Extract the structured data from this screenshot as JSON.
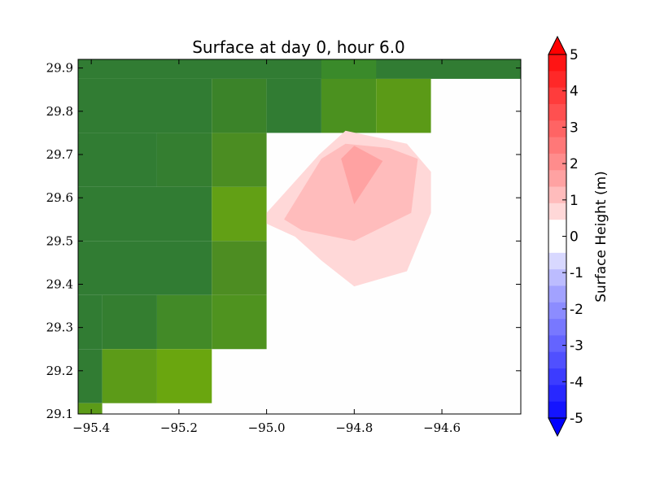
{
  "chart_data": {
    "type": "heatmap",
    "title": "Surface at day 0, hour 6.0",
    "xlabel": "",
    "ylabel": "",
    "xlim": [
      -95.43,
      -94.42
    ],
    "ylim": [
      29.1,
      29.92
    ],
    "xticks": [
      -95.4,
      -95.2,
      -95.0,
      -94.8,
      -94.6
    ],
    "xtick_labels": [
      "−95.4",
      "−95.2",
      "−95.0",
      "−94.8",
      "−94.6"
    ],
    "yticks": [
      29.1,
      29.2,
      29.3,
      29.4,
      29.5,
      29.6,
      29.7,
      29.8,
      29.9
    ],
    "ytick_labels": [
      "29.1",
      "29.2",
      "29.3",
      "29.4",
      "29.5",
      "29.6",
      "29.7",
      "29.8",
      "29.9"
    ],
    "land_cells": [
      {
        "x0": -95.43,
        "x1": -94.42,
        "y0": 29.875,
        "y1": 29.92,
        "color": "#317c33"
      },
      {
        "x0": -94.875,
        "x1": -94.75,
        "y0": 29.875,
        "y1": 29.92,
        "color": "#3a8a2a"
      },
      {
        "x0": -95.43,
        "x1": -95.125,
        "y0": 29.75,
        "y1": 29.875,
        "color": "#317c33"
      },
      {
        "x0": -95.125,
        "x1": -95.0,
        "y0": 29.75,
        "y1": 29.875,
        "color": "#3b8329"
      },
      {
        "x0": -95.0,
        "x1": -94.875,
        "y0": 29.75,
        "y1": 29.875,
        "color": "#317c33"
      },
      {
        "x0": -94.875,
        "x1": -94.75,
        "y0": 29.75,
        "y1": 29.875,
        "color": "#4b911f"
      },
      {
        "x0": -94.75,
        "x1": -94.625,
        "y0": 29.75,
        "y1": 29.875,
        "color": "#5b9a17"
      },
      {
        "x0": -95.43,
        "x1": -95.25,
        "y0": 29.625,
        "y1": 29.75,
        "color": "#317c33"
      },
      {
        "x0": -95.25,
        "x1": -95.125,
        "y0": 29.625,
        "y1": 29.75,
        "color": "#347e30"
      },
      {
        "x0": -95.125,
        "x1": -95.0,
        "y0": 29.625,
        "y1": 29.75,
        "color": "#4b8d22"
      },
      {
        "x0": -95.43,
        "x1": -95.125,
        "y0": 29.5,
        "y1": 29.625,
        "color": "#317c33"
      },
      {
        "x0": -95.125,
        "x1": -95.0,
        "y0": 29.5,
        "y1": 29.625,
        "color": "#62a015"
      },
      {
        "x0": -95.43,
        "x1": -95.125,
        "y0": 29.375,
        "y1": 29.5,
        "color": "#317c33"
      },
      {
        "x0": -95.125,
        "x1": -95.0,
        "y0": 29.375,
        "y1": 29.5,
        "color": "#4d8d22"
      },
      {
        "x0": -95.43,
        "x1": -95.375,
        "y0": 29.25,
        "y1": 29.375,
        "color": "#317c33"
      },
      {
        "x0": -95.375,
        "x1": -95.25,
        "y0": 29.25,
        "y1": 29.375,
        "color": "#347e30"
      },
      {
        "x0": -95.25,
        "x1": -95.125,
        "y0": 29.25,
        "y1": 29.375,
        "color": "#428a27"
      },
      {
        "x0": -95.125,
        "x1": -95.0,
        "y0": 29.25,
        "y1": 29.375,
        "color": "#4f931f"
      },
      {
        "x0": -95.43,
        "x1": -95.375,
        "y0": 29.125,
        "y1": 29.25,
        "color": "#317c33"
      },
      {
        "x0": -95.375,
        "x1": -95.25,
        "y0": 29.125,
        "y1": 29.25,
        "color": "#5c9b18"
      },
      {
        "x0": -95.25,
        "x1": -95.125,
        "y0": 29.125,
        "y1": 29.25,
        "color": "#6aa60f"
      },
      {
        "x0": -95.43,
        "x1": -95.375,
        "y0": 29.1,
        "y1": 29.125,
        "color": "#5c9b18"
      }
    ],
    "surface_contours": [
      {
        "level": "0-0.5",
        "color": "#ffd8d8",
        "points": [
          [
            -95.0,
            29.565
          ],
          [
            -94.88,
            29.7
          ],
          [
            -94.82,
            29.755
          ],
          [
            -94.68,
            29.725
          ],
          [
            -94.625,
            29.66
          ],
          [
            -94.625,
            29.565
          ],
          [
            -94.68,
            29.43
          ],
          [
            -94.8,
            29.395
          ],
          [
            -94.875,
            29.455
          ],
          [
            -94.935,
            29.51
          ],
          [
            -95.0,
            29.54
          ]
        ]
      },
      {
        "level": "0.5-1",
        "color": "#ffbcbc",
        "points": [
          [
            -94.96,
            29.55
          ],
          [
            -94.875,
            29.69
          ],
          [
            -94.82,
            29.725
          ],
          [
            -94.72,
            29.715
          ],
          [
            -94.655,
            29.69
          ],
          [
            -94.67,
            29.565
          ],
          [
            -94.8,
            29.5
          ],
          [
            -94.92,
            29.525
          ]
        ]
      },
      {
        "level": "1-1.5",
        "color": "#ffa2a2",
        "points": [
          [
            -94.83,
            29.69
          ],
          [
            -94.8,
            29.72
          ],
          [
            -94.735,
            29.685
          ],
          [
            -94.8,
            29.585
          ]
        ]
      }
    ],
    "colorbar": {
      "label": "Surface Height (m)",
      "min": -5,
      "max": 5,
      "step": 0.5,
      "tick_values": [
        5,
        4,
        3,
        2,
        1,
        0,
        -1,
        -2,
        -3,
        -4,
        -5
      ],
      "tick_labels": [
        "5",
        "4",
        "3",
        "2",
        "1",
        "0",
        "-1",
        "-2",
        "-3",
        "-4",
        "-5"
      ],
      "bands_top_to_bottom": [
        "#ff1414",
        "#ff2828",
        "#ff3c3c",
        "#ff5050",
        "#ff6464",
        "#ff7878",
        "#ff8c8c",
        "#ffa2a2",
        "#ffbcbc",
        "#ffd8d8",
        "#ffffff",
        "#ffffff",
        "#d8d8ff",
        "#bcbcff",
        "#a2a2ff",
        "#8c8cff",
        "#7878ff",
        "#6464ff",
        "#5050ff",
        "#3c3cff",
        "#2828ff",
        "#1414ff"
      ],
      "over_color": "#ff0000",
      "under_color": "#0000ff"
    }
  }
}
